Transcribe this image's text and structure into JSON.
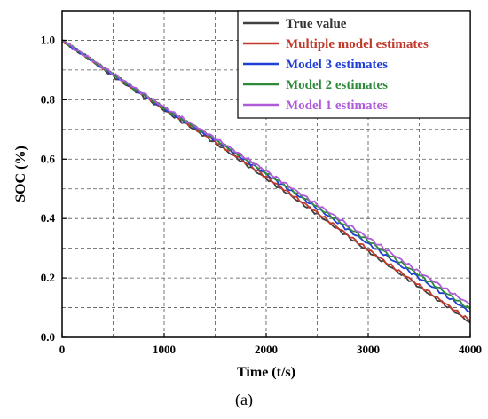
{
  "caption": "(a)",
  "chart_data": {
    "type": "line",
    "title": "",
    "xlabel": "Time (t/s)",
    "ylabel": "SOC (%)",
    "xlim": [
      0,
      4000
    ],
    "ylim": [
      0.0,
      1.1
    ],
    "x_ticks": [
      0,
      1000,
      2000,
      3000,
      4000
    ],
    "y_ticks": [
      0.0,
      0.2,
      0.4,
      0.6,
      0.8,
      1.0
    ],
    "x_tick_labels": [
      "0",
      "1000",
      "2000",
      "3000",
      "4000"
    ],
    "y_tick_labels": [
      "0.0",
      "0.2",
      "0.4",
      "0.6",
      "0.8",
      "1.0"
    ],
    "grid": true,
    "legend_position": "top-right",
    "x": [
      0,
      500,
      1000,
      1500,
      2000,
      2500,
      3000,
      3500,
      4000
    ],
    "series": [
      {
        "name": "True value",
        "color": "#404040",
        "values": [
          1.0,
          0.88,
          0.765,
          0.655,
          0.535,
          0.415,
          0.29,
          0.17,
          0.05
        ]
      },
      {
        "name": "Multiple model estimates",
        "color": "#c0392b",
        "values": [
          1.0,
          0.885,
          0.77,
          0.66,
          0.54,
          0.42,
          0.295,
          0.175,
          0.055
        ]
      },
      {
        "name": "Model 3 estimates",
        "color": "#1f3fd6",
        "values": [
          1.0,
          0.885,
          0.77,
          0.665,
          0.55,
          0.435,
          0.315,
          0.2,
          0.085
        ]
      },
      {
        "name": "Model 2 estimates",
        "color": "#2e8b3a",
        "values": [
          1.0,
          0.886,
          0.772,
          0.667,
          0.555,
          0.44,
          0.325,
          0.21,
          0.095
        ]
      },
      {
        "name": "Model 1 estimates",
        "color": "#b05bd9",
        "values": [
          1.0,
          0.887,
          0.775,
          0.67,
          0.56,
          0.447,
          0.335,
          0.22,
          0.11
        ]
      }
    ]
  }
}
